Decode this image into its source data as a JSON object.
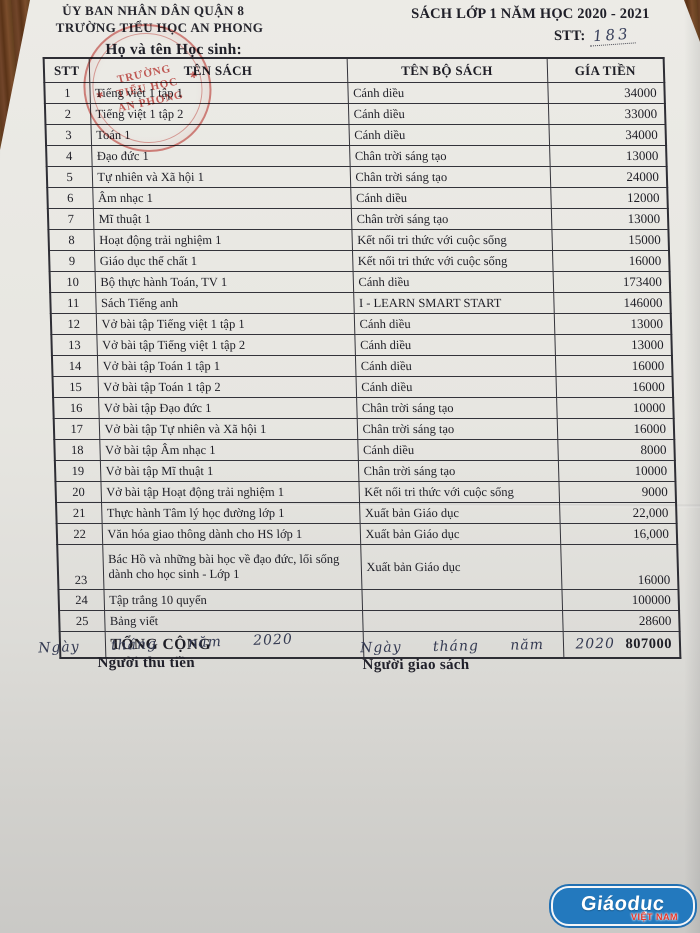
{
  "header": {
    "org_line1": "ỦY BAN NHÂN DÂN QUẬN 8",
    "org_line2": "TRƯỜNG TIỂU HỌC AN PHONG",
    "doc_title": "SÁCH LỚP 1 NĂM HỌC 2020 - 2021",
    "stt_label": "STT:",
    "stt_value": "183",
    "student_label": "Họ và tên Học sinh:"
  },
  "stamp": {
    "line1": "TRƯỜNG",
    "line2": "TIỂU HỌC",
    "line3": "AN PHONG",
    "star": "✱",
    "color": "#b23a34"
  },
  "table": {
    "columns": [
      "STT",
      "TÊN SÁCH",
      "TÊN BỘ SÁCH",
      "GÍA TIỀN"
    ],
    "rows": [
      {
        "no": "1",
        "name": "Tiếng việt 1 tập 1",
        "series": "Cánh diều",
        "price": "34000"
      },
      {
        "no": "2",
        "name": "Tiếng việt 1 tập 2",
        "series": "Cánh diều",
        "price": "33000"
      },
      {
        "no": "3",
        "name": "Toán 1",
        "series": "Cánh diều",
        "price": "34000"
      },
      {
        "no": "4",
        "name": "Đạo đức 1",
        "series": "Chân trời sáng tạo",
        "price": "13000"
      },
      {
        "no": "5",
        "name": "Tự nhiên và Xã hội 1",
        "series": "Chân trời sáng tạo",
        "price": "24000"
      },
      {
        "no": "6",
        "name": "Âm nhạc 1",
        "series": "Cánh diều",
        "price": "12000"
      },
      {
        "no": "7",
        "name": "Mĩ thuật 1",
        "series": "Chân trời sáng tạo",
        "price": "13000"
      },
      {
        "no": "8",
        "name": "Hoạt động trải nghiệm 1",
        "series": "Kết nối tri thức với cuộc sống",
        "price": "15000"
      },
      {
        "no": "9",
        "name": "Giáo dục thể chất 1",
        "series": "Kết nối tri thức với cuộc sống",
        "price": "16000"
      },
      {
        "no": "10",
        "name": "Bộ thực hành Toán, TV 1",
        "series": "Cánh diều",
        "price": "173400"
      },
      {
        "no": "11",
        "name": "Sách Tiếng anh",
        "series": "I - LEARN SMART START",
        "price": "146000"
      },
      {
        "no": "12",
        "name": "Vở bài tập Tiếng việt 1 tập 1",
        "series": "Cánh diều",
        "price": "13000"
      },
      {
        "no": "13",
        "name": "Vở bài tập Tiếng việt 1 tập 2",
        "series": "Cánh diều",
        "price": "13000"
      },
      {
        "no": "14",
        "name": "Vở bài tập Toán 1 tập 1",
        "series": "Cánh diều",
        "price": "16000"
      },
      {
        "no": "15",
        "name": "Vở bài tập Toán 1 tập 2",
        "series": "Cánh diều",
        "price": "16000"
      },
      {
        "no": "16",
        "name": "Vở bài tập Đạo đức 1",
        "series": "Chân trời sáng tạo",
        "price": "10000"
      },
      {
        "no": "17",
        "name": "Vở bài tập Tự nhiên và Xã hội 1",
        "series": "Chân trời sáng tạo",
        "price": "16000"
      },
      {
        "no": "18",
        "name": "Vở bài tập Âm nhạc 1",
        "series": "Cánh diều",
        "price": "8000"
      },
      {
        "no": "19",
        "name": "Vở bài tập Mĩ thuật 1",
        "series": "Chân trời sáng tạo",
        "price": "10000"
      },
      {
        "no": "20",
        "name": "Vở bài tập Hoạt động trải nghiệm 1",
        "series": "Kết nối tri thức với cuộc sống",
        "price": "9000"
      },
      {
        "no": "21",
        "name": "Thực hành Tâm lý học đường lớp 1",
        "series": "Xuất bản Giáo dục",
        "price": "22,000"
      },
      {
        "no": "22",
        "name": "Văn hóa giao thông dành cho HS lớp 1",
        "series": "Xuất bản Giáo dục",
        "price": "16,000"
      },
      {
        "no": "23",
        "name": "Bác Hồ và những bài học về đạo đức, lối sống dành cho học sinh - Lớp 1",
        "series": "Xuất bản Giáo dục",
        "price": "16000"
      },
      {
        "no": "24",
        "name": "Tập trắng 10 quyển",
        "series": "",
        "price": "100000"
      },
      {
        "no": "25",
        "name": "Bảng viết",
        "series": "",
        "price": "28600"
      }
    ],
    "total_label": "TỔNG CỘNG",
    "total_value": "807000"
  },
  "footer": {
    "date_left": "Ngày tháng năm 2020",
    "sign_left": "Người thu tiền",
    "date_right": "Ngày tháng năm 2020",
    "sign_right": "Người giao sách"
  },
  "logo": {
    "text_main": "Giáodục",
    "text_sub": "VIỆT NAM",
    "blue": "#2379be",
    "red": "#e8372b"
  }
}
